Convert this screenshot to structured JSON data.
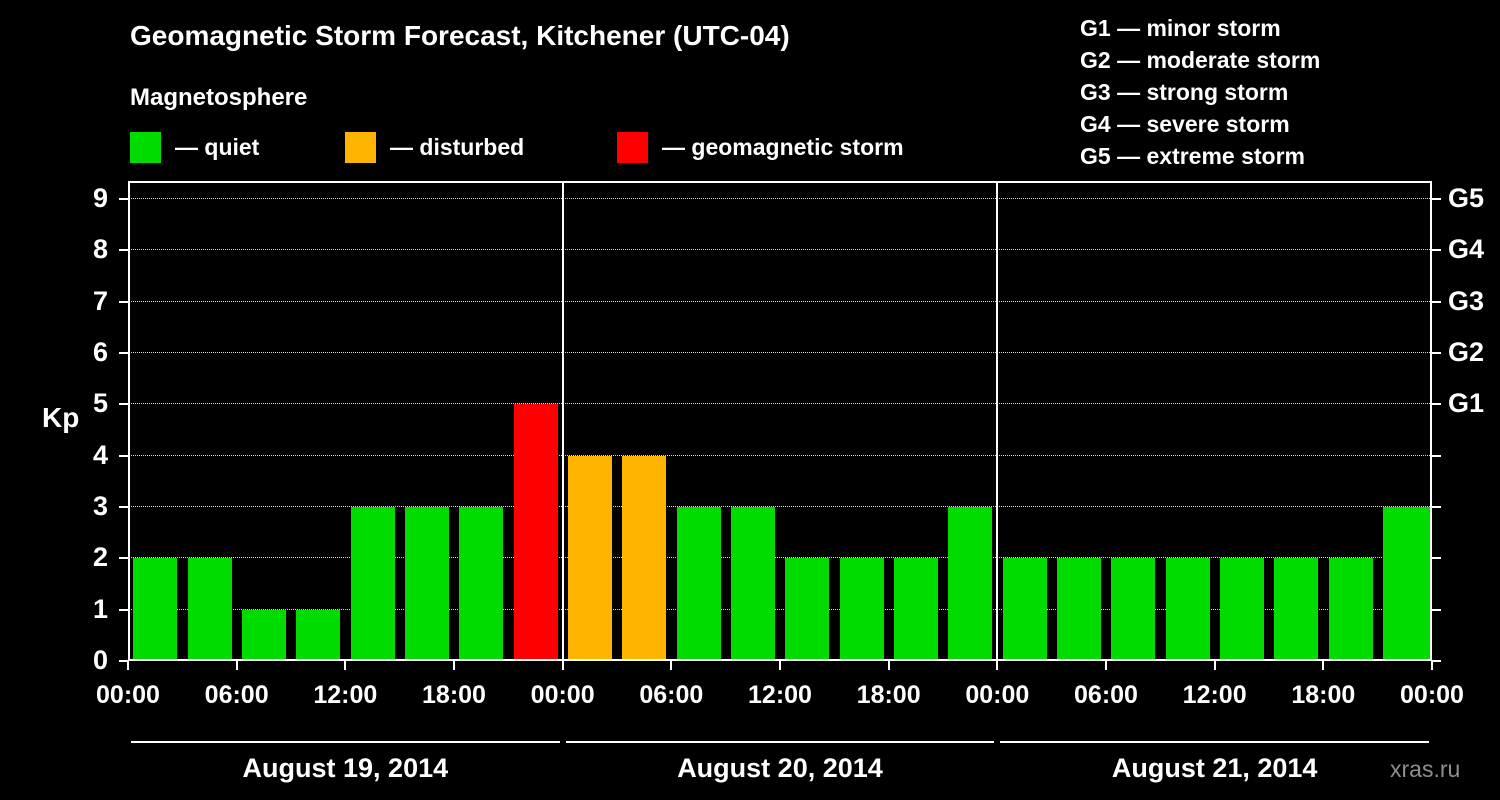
{
  "title": "Geomagnetic Storm Forecast, Kitchener (UTC-04)",
  "subtitle": "Magnetosphere",
  "watermark": "xras.ru",
  "legend": {
    "items": [
      {
        "label": "— quiet",
        "color": "#00db00"
      },
      {
        "label": "— disturbed",
        "color": "#ffb400"
      },
      {
        "label": "— geomagnetic storm",
        "color": "#ff0000"
      }
    ]
  },
  "storm_scale": [
    "G1 — minor storm",
    "G2 — moderate storm",
    "G3 — strong storm",
    "G4 — severe storm",
    "G5 — extreme storm"
  ],
  "chart_data": {
    "type": "bar",
    "title": "Geomagnetic Storm Forecast, Kitchener (UTC-04)",
    "ylabel": "Kp",
    "ylim": [
      0,
      9
    ],
    "y_ticks": [
      0,
      1,
      2,
      3,
      4,
      5,
      6,
      7,
      8,
      9
    ],
    "grid": "dotted-horizontal",
    "interval_hours": 3,
    "x_tick_labels": [
      "00:00",
      "06:00",
      "12:00",
      "18:00",
      "00:00",
      "06:00",
      "12:00",
      "18:00",
      "00:00",
      "06:00",
      "12:00",
      "18:00",
      "00:00"
    ],
    "right_axis": [
      {
        "label": "G1",
        "kp": 5
      },
      {
        "label": "G2",
        "kp": 6
      },
      {
        "label": "G3",
        "kp": 7
      },
      {
        "label": "G4",
        "kp": 8
      },
      {
        "label": "G5",
        "kp": 9
      }
    ],
    "color_thresholds": {
      "quiet_max": 3,
      "disturbed_max": 4,
      "colors": {
        "quiet": "#00db00",
        "disturbed": "#ffb400",
        "storm": "#ff0000"
      }
    },
    "days": [
      {
        "date": "August 19, 2014",
        "values": [
          2,
          2,
          1,
          1,
          3,
          3,
          3,
          5
        ]
      },
      {
        "date": "August 20, 2014",
        "values": [
          4,
          4,
          3,
          3,
          2,
          2,
          2,
          3
        ]
      },
      {
        "date": "August 21, 2014",
        "values": [
          2,
          2,
          2,
          2,
          2,
          2,
          2,
          3
        ]
      }
    ],
    "partial_next_bar": {
      "value": 3
    }
  }
}
